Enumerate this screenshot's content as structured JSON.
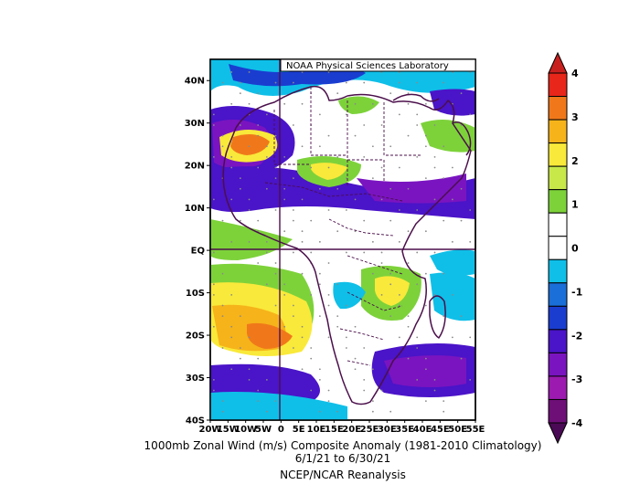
{
  "map": {
    "attribution": "NOAA Physical Sciences Laboratory",
    "lat_labels": [
      "40N",
      "30N",
      "20N",
      "10N",
      "EQ",
      "10S",
      "20S",
      "30S",
      "40S"
    ],
    "lon_labels": [
      "20W",
      "15W",
      "10W",
      "5W",
      "0",
      "5E",
      "10E",
      "15E",
      "20E",
      "25E",
      "30E",
      "35E",
      "40E",
      "45E",
      "50E",
      "55E"
    ],
    "lat_range": [
      -40,
      45
    ],
    "lon_range": [
      -20,
      55
    ],
    "variable": "1000mb zonal wind anomaly (m/s)"
  },
  "colorbar": {
    "tick_labels": [
      "4",
      "3",
      "2",
      "1",
      "0",
      "-1",
      "-2",
      "-3",
      "-4"
    ],
    "colors": [
      "#e8261a",
      "#f0781a",
      "#f6b31a",
      "#f9e93a",
      "#c8e84a",
      "#7dd23a",
      "#ffffff",
      "#ffffff",
      "#0fbfe8",
      "#1a6fd8",
      "#1a3dd0",
      "#4a14c8",
      "#7a14c0",
      "#9c1ab0",
      "#6e0f78"
    ]
  },
  "caption": {
    "line1": "1000mb Zonal Wind (m/s) Composite Anomaly (1981-2010 Climatology)",
    "line2": "6/1/21   to 6/30/21",
    "line3": "NCEP/NCAR Reanalysis"
  }
}
